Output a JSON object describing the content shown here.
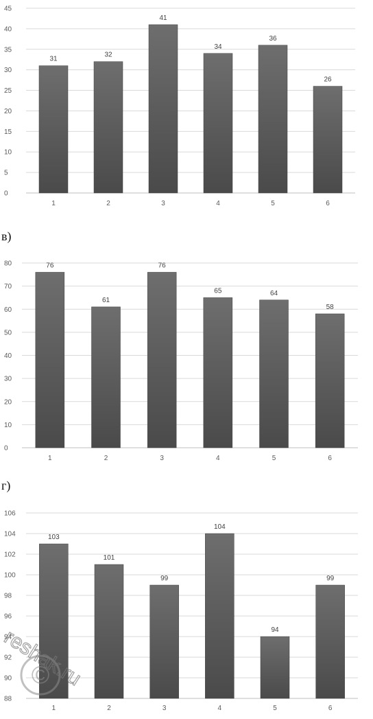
{
  "part_labels": [
    "в)",
    "г)"
  ],
  "watermark": {
    "text": "reshak.ru",
    "symbol": "©"
  },
  "colors": {
    "bar_dark": "#4a4a4a",
    "bar_light": "#6e6e6e",
    "grid": "#d9d9d9"
  },
  "chart_data": [
    {
      "type": "bar",
      "categories": [
        "1",
        "2",
        "3",
        "4",
        "5",
        "6"
      ],
      "values": [
        31,
        32,
        41,
        34,
        36,
        26
      ],
      "data_labels": [
        "31",
        "32",
        "41",
        "34",
        "36",
        "26"
      ],
      "ylim": [
        0,
        45
      ],
      "yticks": [
        "0",
        "5",
        "10",
        "15",
        "20",
        "25",
        "30",
        "35",
        "40",
        "45"
      ],
      "grid": true
    },
    {
      "type": "bar",
      "categories": [
        "1",
        "2",
        "3",
        "4",
        "5",
        "6"
      ],
      "values": [
        76,
        61,
        76,
        65,
        64,
        58
      ],
      "data_labels": [
        "76",
        "61",
        "76",
        "65",
        "64",
        "58"
      ],
      "ylim": [
        0,
        80
      ],
      "yticks": [
        "0",
        "10",
        "20",
        "30",
        "40",
        "50",
        "60",
        "70",
        "80"
      ],
      "grid": true
    },
    {
      "type": "bar",
      "categories": [
        "1",
        "2",
        "3",
        "4",
        "5",
        "6"
      ],
      "values": [
        103,
        101,
        99,
        104,
        94,
        99
      ],
      "data_labels": [
        "103",
        "101",
        "99",
        "104",
        "94",
        "99"
      ],
      "ylim": [
        88,
        106
      ],
      "yticks": [
        "88",
        "90",
        "92",
        "94",
        "96",
        "98",
        "100",
        "102",
        "104",
        "106"
      ],
      "grid": true
    }
  ]
}
